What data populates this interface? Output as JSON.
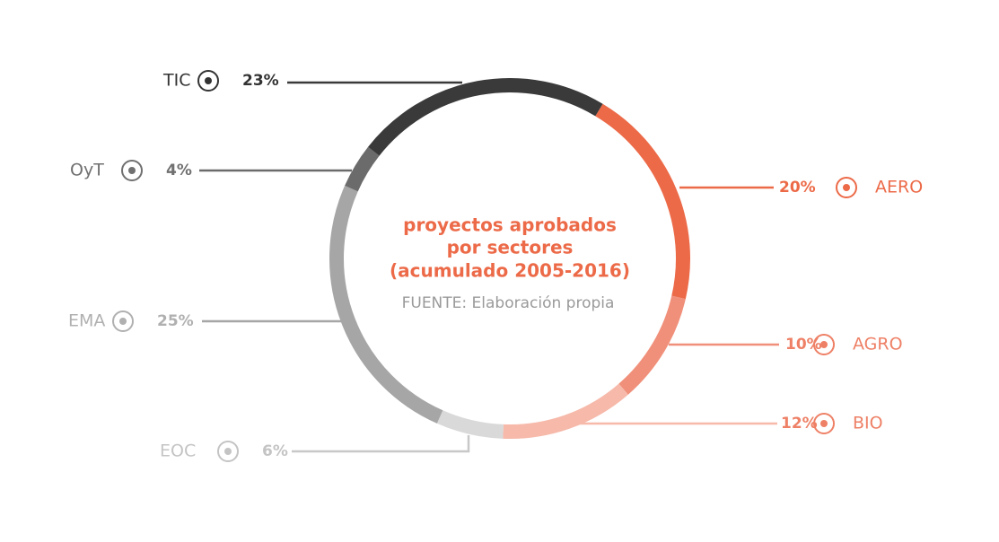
{
  "chart_data": {
    "type": "donut",
    "title": [
      "proyectos aprobados",
      "por sectores",
      "(acumulado 2005-2016)"
    ],
    "subtitle": "FUENTE: Elaboración propia",
    "categories": [
      "AERO",
      "AGRO",
      "BIO",
      "EOC",
      "EMA",
      "OyT",
      "TIC"
    ],
    "values": [
      20,
      10,
      12,
      6,
      25,
      4,
      23
    ],
    "value_labels": [
      "20%",
      "10%",
      "12%",
      "6%",
      "25%",
      "4%",
      "23%"
    ],
    "colors": [
      "#ec6a48",
      "#f0907a",
      "#f6b9aa",
      "#d9d9d9",
      "#a6a6a6",
      "#6b6b6b",
      "#3a3a3a"
    ]
  }
}
